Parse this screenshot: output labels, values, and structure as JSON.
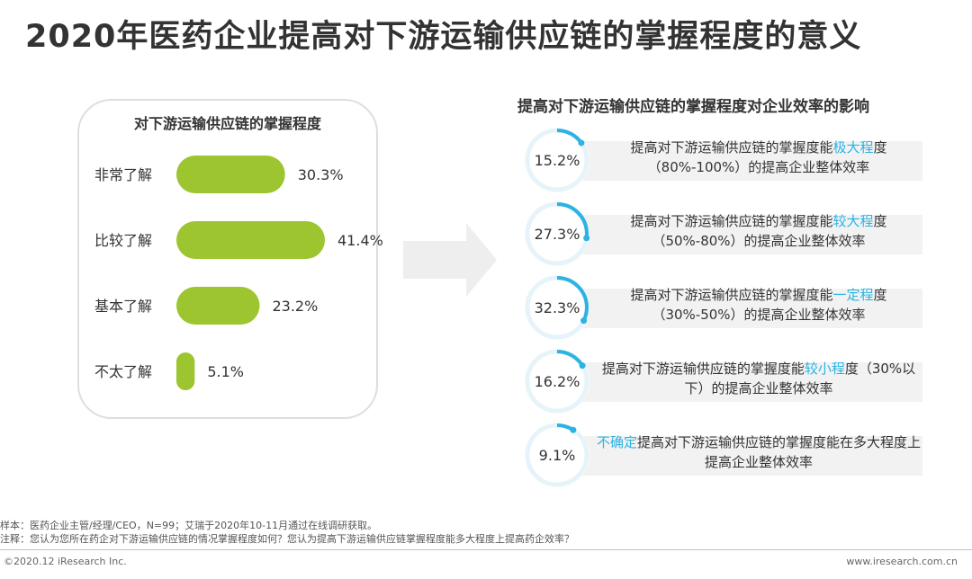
{
  "title": "2020年医药企业提高对下游运输供应链的掌握程度的意义",
  "colors": {
    "bar": "#9dc530",
    "accent": "#2bb3e3",
    "ring": "#e6f4fa",
    "arrow": "#eeeeee"
  },
  "chart_data": [
    {
      "type": "bar",
      "orientation": "horizontal",
      "title": "对下游运输供应链的掌握程度",
      "categories": [
        "非常了解",
        "比较了解",
        "基本了解",
        "不太了解"
      ],
      "values": [
        30.3,
        41.4,
        23.2,
        5.1
      ],
      "value_labels": [
        "30.3%",
        "41.4%",
        "23.2%",
        "5.1%"
      ],
      "unit": "%"
    },
    {
      "type": "pie",
      "title": "提高对下游运输供应链的掌握程度对企业效率的影响",
      "items": [
        {
          "value": 15.2,
          "label": "15.2%",
          "text_pre": "提高对下游运输供应链的掌握度能",
          "highlight": "极大程",
          "text_post": "度（80%-100%）的提高企业整体效率"
        },
        {
          "value": 27.3,
          "label": "27.3%",
          "text_pre": "提高对下游运输供应链的掌握度能",
          "highlight": "较大程",
          "text_post": "度（50%-80%）的提高企业整体效率"
        },
        {
          "value": 32.3,
          "label": "32.3%",
          "text_pre": "提高对下游运输供应链的掌握度能",
          "highlight": "一定程",
          "text_post": "度（30%-50%）的提高企业整体效率"
        },
        {
          "value": 16.2,
          "label": "16.2%",
          "text_pre": "提高对下游运输供应链的掌握度能",
          "highlight": "较小程",
          "text_post": "度（30%以下）的提高企业整体效率"
        },
        {
          "value": 9.1,
          "label": "9.1%",
          "text_pre": "",
          "highlight": "不确定",
          "text_post": "提高对下游运输供应链的掌握度能在多大程度上提高企业整体效率"
        }
      ]
    }
  ],
  "footer": {
    "note1": "样本：医药企业主管/经理/CEO，N=99；艾瑞于2020年10-11月通过在线调研获取。",
    "note2": "注释：您认为您所在药企对下游运输供应链的情况掌握程度如何？您认为提高下游运输供应链掌握程度能多大程度上提高药企效率？",
    "copyright": "©2020.12 iResearch Inc.",
    "url": "www.iresearch.com.cn"
  }
}
